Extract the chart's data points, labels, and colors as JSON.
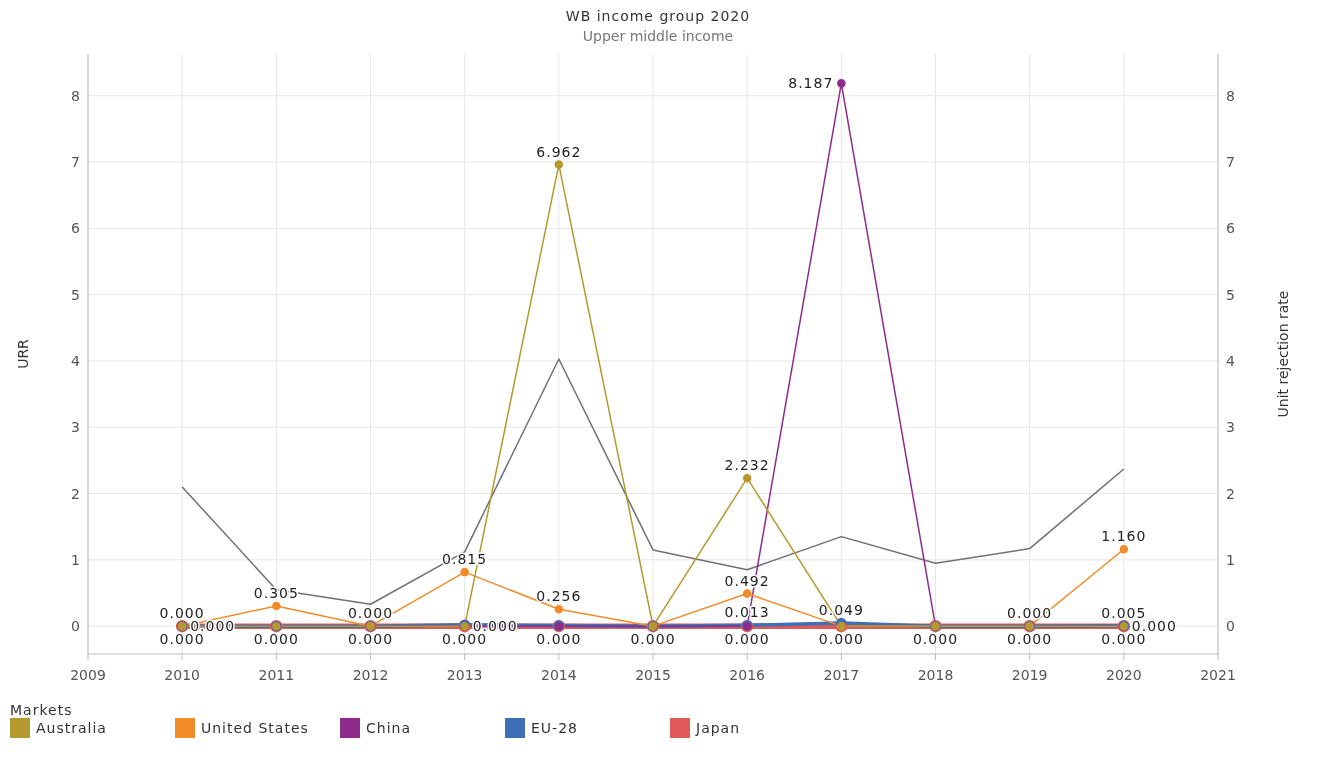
{
  "chart_data": {
    "type": "line",
    "title": "WB income group 2020",
    "subtitle": "Upper middle income",
    "ylabel": "URR",
    "y2label": "Unit rejection rate",
    "legend_title": "Markets",
    "legend": "bottom",
    "grid": true,
    "marker": "circle",
    "x": [
      2010,
      2011,
      2012,
      2013,
      2014,
      2015,
      2016,
      2017,
      2018,
      2019,
      2020
    ],
    "xlim": [
      2009,
      2021
    ],
    "xticks": [
      2009,
      2010,
      2011,
      2012,
      2013,
      2014,
      2015,
      2016,
      2017,
      2018,
      2019,
      2020,
      2021
    ],
    "ylim": [
      -0.42,
      8.63
    ],
    "yticks": [
      0,
      1,
      2,
      3,
      4,
      5,
      6,
      7,
      8
    ],
    "y2lim": [
      -0.42,
      8.63
    ],
    "y2ticks": [
      0,
      1,
      2,
      3,
      4,
      5,
      6,
      7,
      8
    ],
    "series": [
      {
        "color": "#707070",
        "axis": "y2",
        "marker": "none",
        "values": [
          2.1,
          0.55,
          0.33,
          1.12,
          4.03,
          1.15,
          0.85,
          1.35,
          0.95,
          1.17,
          2.37
        ]
      },
      {
        "name": "Japan",
        "color": "#e05a5a",
        "values": [
          0,
          0,
          0,
          0,
          0,
          0,
          0,
          0,
          0,
          0,
          0
        ],
        "value_labels": [
          "0.000",
          "0.000",
          "0.000",
          "0.000",
          "0.000",
          "0.000",
          "0.000",
          "0.000",
          "0.000",
          "0.000",
          "0.000"
        ]
      },
      {
        "name": "EU-28",
        "color": "#3e6eb5",
        "values": [
          0,
          0,
          0,
          0.02,
          0.01,
          0,
          0.013,
          0.049,
          0,
          0,
          0.005
        ],
        "value_labels": [
          null,
          null,
          null,
          null,
          null,
          null,
          "0.013",
          "0.049",
          null,
          null,
          "0.005"
        ]
      },
      {
        "name": "China",
        "color": "#8e2c8e",
        "values": [
          0,
          0,
          0,
          0,
          0,
          0,
          0,
          8.187,
          0,
          0,
          0
        ],
        "value_labels": [
          null,
          null,
          null,
          null,
          null,
          null,
          null,
          "8.187",
          null,
          null,
          null
        ]
      },
      {
        "name": "United States",
        "color": "#f28c28",
        "values": [
          0,
          0.305,
          0,
          0.815,
          0.256,
          0,
          0.492,
          0,
          0,
          0,
          1.16
        ],
        "value_labels": [
          "0.000",
          "0.305",
          "0.000",
          "0.815",
          "0.256",
          null,
          "0.492",
          null,
          null,
          "0.000",
          "1.160"
        ]
      },
      {
        "name": "Australia",
        "color": "#b5992e",
        "values": [
          0,
          0,
          0,
          0,
          6.962,
          0,
          2.232,
          0,
          0,
          0,
          0
        ],
        "value_labels": [
          "0.000",
          null,
          null,
          "0.000",
          "6.962",
          null,
          "2.232",
          null,
          null,
          null,
          "0.000"
        ]
      }
    ]
  }
}
